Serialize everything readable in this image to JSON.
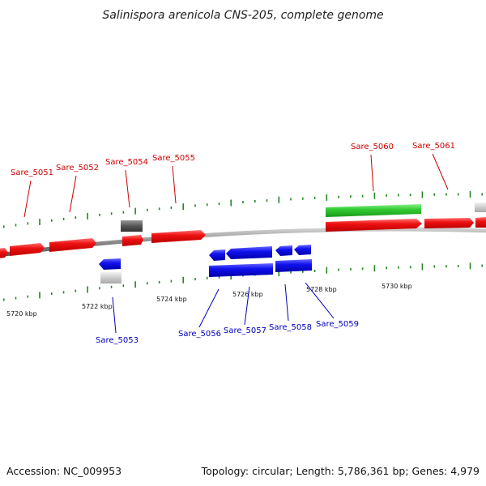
{
  "title": "Salinispora arenicola CNS-205, complete genome",
  "footer": {
    "accession": "Accession: NC_009953",
    "stats": "Topology: circular; Length: 5,786,361 bp; Genes: 4,979"
  },
  "colors": {
    "forward_strand": "#ee1111",
    "reverse_strand": "#1111ee",
    "rna_gene": "#33cc33",
    "pseudo_gene_light": "#cccccc",
    "pseudo_gene_dark": "#555555",
    "backbone": "#888888",
    "tick": "#228822",
    "label_forward": "#cc0000",
    "label_reverse": "#0000bb"
  },
  "scale_labels": [
    "5720 kbp",
    "5722 kbp",
    "5724 kbp",
    "5726 kbp",
    "5728 kbp",
    "5730 kbp"
  ],
  "gene_labels": [
    {
      "id": "Sare_5051",
      "strand": "forward"
    },
    {
      "id": "Sare_5052",
      "strand": "forward"
    },
    {
      "id": "Sare_5053",
      "strand": "reverse"
    },
    {
      "id": "Sare_5054",
      "strand": "forward"
    },
    {
      "id": "Sare_5055",
      "strand": "forward"
    },
    {
      "id": "Sare_5056",
      "strand": "reverse"
    },
    {
      "id": "Sare_5057",
      "strand": "reverse"
    },
    {
      "id": "Sare_5058",
      "strand": "reverse"
    },
    {
      "id": "Sare_5059",
      "strand": "reverse"
    },
    {
      "id": "Sare_5060",
      "strand": "forward"
    },
    {
      "id": "Sare_5061",
      "strand": "forward"
    }
  ]
}
